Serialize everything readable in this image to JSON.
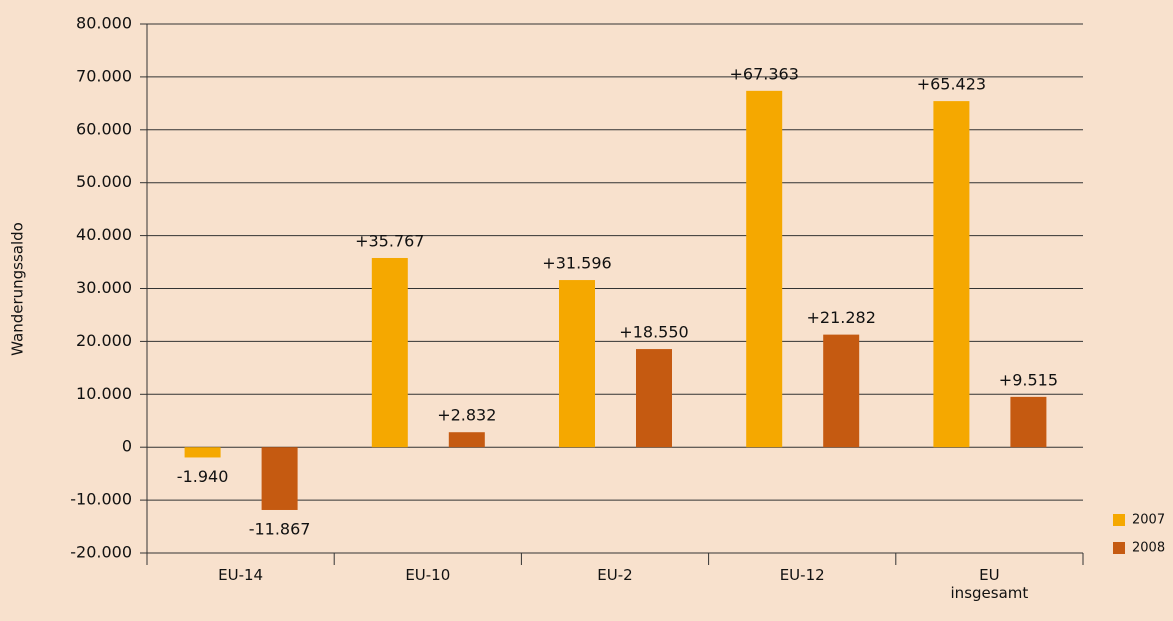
{
  "chart_data": {
    "type": "bar",
    "y_label": "Wanderungssaldo",
    "categories": [
      "EU-14",
      "EU-10",
      "EU-2",
      "EU-12",
      "EU insgesamt"
    ],
    "series": [
      {
        "name": "2007",
        "color": "#f5a800",
        "values": [
          -1940,
          35767,
          31596,
          67363,
          65423
        ],
        "value_labels": [
          "-1.940",
          "+35.767",
          "+31.596",
          "+67.363",
          "+65.423"
        ]
      },
      {
        "name": "2008",
        "color": "#c55a11",
        "values": [
          -11867,
          2832,
          18550,
          21282,
          9515
        ],
        "value_labels": [
          "-11.867",
          "+2.832",
          "+18.550",
          "+21.282",
          "+9.515"
        ]
      }
    ],
    "ylim": [
      -20000,
      80000
    ],
    "yticks": [
      {
        "value": -20000,
        "label": "-20.000"
      },
      {
        "value": -10000,
        "label": "-10.000"
      },
      0,
      {
        "value": 10000,
        "label": "10.000"
      },
      {
        "value": 20000,
        "label": "20.000"
      },
      {
        "value": 30000,
        "label": "30.000"
      },
      {
        "value": 40000,
        "label": "40.000"
      },
      {
        "value": 50000,
        "label": "50.000"
      },
      {
        "value": 60000,
        "label": "60.000"
      },
      {
        "value": 70000,
        "label": "70.000"
      },
      {
        "value": 80000,
        "label": "80.000"
      }
    ],
    "grid": true,
    "legend": "lower right"
  }
}
